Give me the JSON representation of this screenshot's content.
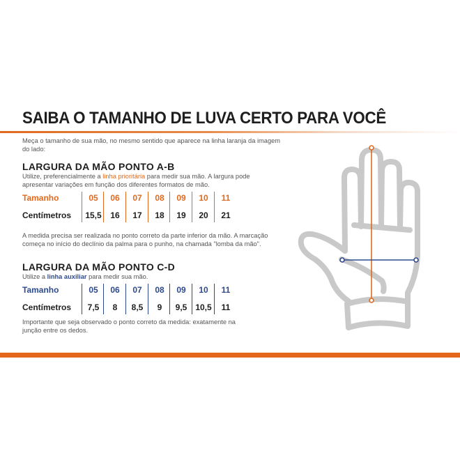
{
  "title": "SAIBA O TAMANHO DE LUVA CERTO PARA VOCÊ",
  "intro": [
    "Meça o tamanho de sua mão, no mesmo sentido que aparece na linha laranja da imagem",
    "do lado:"
  ],
  "section_ab": {
    "heading": "LARGURA DA MÃO PONTO A-B",
    "desc_pre": "Utilize, preferencialmente a ",
    "desc_highlight": "linha prioritária",
    "desc_post": " para medir sua mão. A largura pode",
    "desc_line2": "apresentar variações em função dos diferentes formatos de mão.",
    "size_label": "Tamanho",
    "cm_label": "Centímetros",
    "sizes": [
      "05",
      "06",
      "07",
      "08",
      "09",
      "10",
      "11"
    ],
    "cm": [
      "15,5",
      "16",
      "17",
      "18",
      "19",
      "20",
      "21"
    ],
    "note": [
      "A medida precisa ser realizada no ponto correto da parte inferior da mão. A marcação",
      "começa no início do declínio da palma para o punho, na chamada \"lomba da mão\"."
    ]
  },
  "section_cd": {
    "heading": "LARGURA DA MÃO PONTO C-D",
    "desc_pre": "Utilize a ",
    "desc_highlight": "linha auxiliar",
    "desc_post": " para medir sua mão.",
    "size_label": "Tamanho",
    "cm_label": "Centímetros",
    "sizes": [
      "05",
      "06",
      "07",
      "08",
      "09",
      "10",
      "11"
    ],
    "cm": [
      "7,5",
      "8",
      "8,5",
      "9",
      "9,5",
      "10,5",
      "11"
    ],
    "note": [
      "Importante que seja observado o ponto correto da medida: exatamente na",
      "junção entre os dedos."
    ]
  },
  "colors": {
    "orange": "#e06a1e",
    "blue": "#2e4a8e",
    "hand": "#c9c9c9"
  }
}
